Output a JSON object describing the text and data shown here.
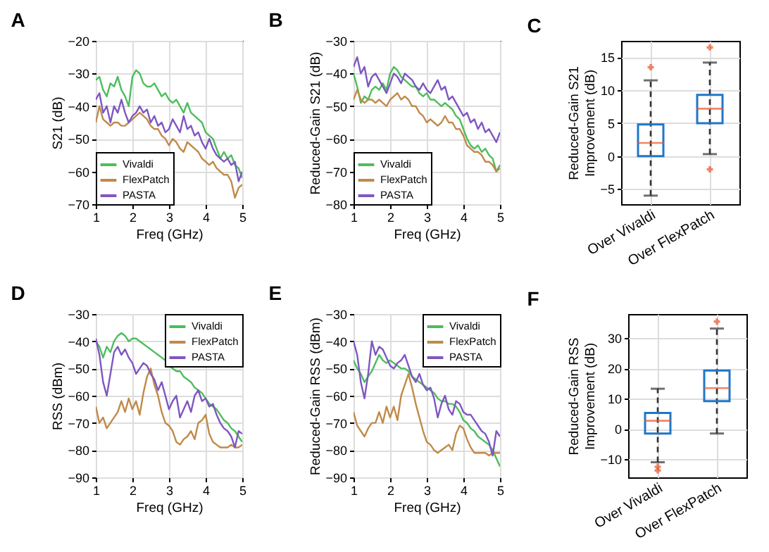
{
  "chart_data": [
    {
      "type": "line",
      "title": "A",
      "xlabel": "Freq (GHz)",
      "ylabel": "S21 (dB)",
      "xlim": [
        1,
        5
      ],
      "xticks": [
        1,
        2,
        3,
        4,
        5
      ],
      "ylim": [
        -70,
        -20
      ],
      "yticks": [
        -70,
        -60,
        -50,
        -40,
        -30,
        -20
      ],
      "grid": true,
      "legend": "bottom left",
      "x": [
        1,
        1.1,
        1.2,
        1.3,
        1.4,
        1.5,
        1.6,
        1.7,
        1.8,
        1.9,
        2,
        2.1,
        2.2,
        2.3,
        2.4,
        2.5,
        2.6,
        2.7,
        2.8,
        2.9,
        3,
        3.1,
        3.2,
        3.3,
        3.4,
        3.5,
        3.6,
        3.7,
        3.8,
        3.9,
        4,
        4.1,
        4.2,
        4.3,
        4.4,
        4.5,
        4.6,
        4.7,
        4.8,
        4.9,
        5
      ],
      "series": [
        {
          "name": "Vivaldi",
          "color": "#4dbd5c",
          "values": [
            -32,
            -31,
            -35,
            -37,
            -33,
            -34,
            -31,
            -35,
            -37,
            -40,
            -31,
            -29,
            -30,
            -33,
            -34,
            -34,
            -33,
            -35,
            -37,
            -36,
            -38,
            -39,
            -38,
            -40,
            -42,
            -39,
            -42,
            -43,
            -44,
            -45,
            -48,
            -49,
            -50,
            -53,
            -56,
            -54,
            -56,
            -55,
            -58,
            -59,
            -62
          ]
        },
        {
          "name": "FlexPatch",
          "color": "#c08a4a",
          "values": [
            -45,
            -40,
            -44,
            -45,
            -46,
            -45,
            -45,
            -46,
            -46,
            -45,
            -44,
            -43,
            -42,
            -43,
            -44,
            -46,
            -47,
            -47,
            -49,
            -50,
            -52,
            -50,
            -51,
            -53,
            -54,
            -51,
            -52,
            -53,
            -54,
            -56,
            -57,
            -58,
            -57,
            -59,
            -60,
            -61,
            -61,
            -63,
            -68,
            -65,
            -64
          ]
        },
        {
          "name": "PASTA",
          "color": "#7e57c2",
          "values": [
            -38,
            -36,
            -42,
            -40,
            -45,
            -40,
            -42,
            -38,
            -42,
            -45,
            -43,
            -42,
            -40,
            -42,
            -41,
            -45,
            -43,
            -46,
            -45,
            -48,
            -47,
            -44,
            -46,
            -48,
            -43,
            -47,
            -46,
            -49,
            -48,
            -51,
            -53,
            -50,
            -53,
            -55,
            -56,
            -57,
            -56,
            -58,
            -57,
            -63,
            -60
          ]
        }
      ]
    },
    {
      "type": "line",
      "title": "B",
      "xlabel": "Freq (GHz)",
      "ylabel": "Reduced-Gain S21 (dB)",
      "xlim": [
        1,
        5
      ],
      "xticks": [
        1,
        2,
        3,
        4,
        5
      ],
      "ylim": [
        -80,
        -30
      ],
      "yticks": [
        -80,
        -70,
        -60,
        -50,
        -40,
        -30
      ],
      "grid": true,
      "legend": "bottom left",
      "x": [
        1,
        1.1,
        1.2,
        1.3,
        1.4,
        1.5,
        1.6,
        1.7,
        1.8,
        1.9,
        2,
        2.1,
        2.2,
        2.3,
        2.4,
        2.5,
        2.6,
        2.7,
        2.8,
        2.9,
        3,
        3.1,
        3.2,
        3.3,
        3.4,
        3.5,
        3.6,
        3.7,
        3.8,
        3.9,
        4,
        4.1,
        4.2,
        4.3,
        4.4,
        4.5,
        4.6,
        4.7,
        4.8,
        4.9,
        5
      ],
      "series": [
        {
          "name": "Vivaldi",
          "color": "#4dbd5c",
          "values": [
            -40,
            -44,
            -49,
            -47,
            -48,
            -45,
            -44,
            -45,
            -43,
            -45,
            -40,
            -38,
            -39,
            -41,
            -42,
            -43,
            -44,
            -44,
            -46,
            -47,
            -46,
            -48,
            -48,
            -49,
            -50,
            -49,
            -50,
            -51,
            -53,
            -54,
            -57,
            -60,
            -62,
            -63,
            -62,
            -64,
            -63,
            -65,
            -66,
            -70,
            -68
          ]
        },
        {
          "name": "FlexPatch",
          "color": "#c08a4a",
          "values": [
            -48,
            -45,
            -48,
            -49,
            -48,
            -48,
            -49,
            -48,
            -49,
            -50,
            -48,
            -47,
            -46,
            -48,
            -47,
            -48,
            -50,
            -50,
            -52,
            -53,
            -55,
            -54,
            -55,
            -56,
            -55,
            -53,
            -55,
            -55,
            -57,
            -57,
            -59,
            -62,
            -63,
            -64,
            -64,
            -65,
            -67,
            -67,
            -68,
            -70,
            -69
          ]
        },
        {
          "name": "PASTA",
          "color": "#7e57c2",
          "values": [
            -38,
            -35,
            -40,
            -38,
            -44,
            -41,
            -40,
            -42,
            -44,
            -46,
            -43,
            -40,
            -41,
            -43,
            -40,
            -41,
            -42,
            -44,
            -45,
            -43,
            -45,
            -46,
            -44,
            -42,
            -45,
            -44,
            -48,
            -47,
            -49,
            -51,
            -53,
            -52,
            -55,
            -54,
            -57,
            -55,
            -58,
            -57,
            -59,
            -61,
            -58
          ]
        }
      ]
    },
    {
      "type": "box",
      "title": "C",
      "ylabel": "Reduced-Gain S21 Improvement (dB)",
      "categories": [
        "Over Vivaldi",
        "Over FlexPatch"
      ],
      "ylim": [
        -7.3,
        17.5
      ],
      "yticks": [
        -5,
        0,
        5,
        10,
        15
      ],
      "grid": true,
      "boxes": [
        {
          "low": -6,
          "q1": 0,
          "median": 2,
          "q3": 4.8,
          "high": 11.5,
          "outliers": [
            13.5
          ]
        },
        {
          "low": 0.3,
          "q1": 5,
          "median": 7.2,
          "q3": 9.3,
          "high": 14.2,
          "outliers": [
            16.5,
            -2
          ]
        }
      ]
    },
    {
      "type": "line",
      "title": "D",
      "xlabel": "Freq (GHz)",
      "ylabel": "RSS (dBm)",
      "xlim": [
        1,
        5
      ],
      "xticks": [
        1,
        2,
        3,
        4,
        5
      ],
      "ylim": [
        -90,
        -30
      ],
      "yticks": [
        -90,
        -80,
        -70,
        -60,
        -50,
        -40,
        -30
      ],
      "grid": true,
      "legend": "top right",
      "x": [
        1,
        1.1,
        1.2,
        1.3,
        1.4,
        1.5,
        1.6,
        1.7,
        1.8,
        1.9,
        2,
        2.1,
        2.2,
        2.3,
        2.4,
        2.5,
        2.6,
        2.7,
        2.8,
        2.9,
        3,
        3.1,
        3.2,
        3.3,
        3.4,
        3.5,
        3.6,
        3.7,
        3.8,
        3.9,
        4,
        4.1,
        4.2,
        4.3,
        4.4,
        4.5,
        4.6,
        4.7,
        4.8,
        4.9,
        5
      ],
      "series": [
        {
          "name": "Vivaldi",
          "color": "#4dbd5c",
          "values": [
            -40,
            -42,
            -46,
            -42,
            -44,
            -40,
            -38,
            -37,
            -38,
            -40,
            -39,
            -39,
            -40,
            -41,
            -42,
            -43,
            -44,
            -45,
            -46,
            -47,
            -49,
            -50,
            -51,
            -51,
            -53,
            -54,
            -55,
            -57,
            -58,
            -59,
            -61,
            -63,
            -64,
            -65,
            -67,
            -69,
            -70,
            -72,
            -73,
            -75,
            -77
          ]
        },
        {
          "name": "FlexPatch",
          "color": "#c08a4a",
          "values": [
            -64,
            -70,
            -68,
            -72,
            -70,
            -68,
            -66,
            -62,
            -66,
            -61,
            -65,
            -62,
            -67,
            -59,
            -53,
            -50,
            -56,
            -60,
            -66,
            -70,
            -71,
            -73,
            -77,
            -78,
            -76,
            -75,
            -73,
            -76,
            -70,
            -69,
            -67,
            -74,
            -77,
            -78,
            -79,
            -79,
            -79,
            -78,
            -79,
            -79,
            -78
          ]
        },
        {
          "name": "PASTA",
          "color": "#7e57c2",
          "values": [
            -39,
            -45,
            -55,
            -60,
            -52,
            -44,
            -42,
            -45,
            -43,
            -46,
            -48,
            -52,
            -50,
            -48,
            -49,
            -52,
            -54,
            -58,
            -55,
            -60,
            -65,
            -62,
            -60,
            -68,
            -65,
            -62,
            -66,
            -60,
            -58,
            -62,
            -61,
            -64,
            -63,
            -67,
            -70,
            -72,
            -73,
            -75,
            -79,
            -73,
            -74
          ]
        }
      ]
    },
    {
      "type": "line",
      "title": "E",
      "xlabel": "Freq (GHz)",
      "ylabel": "Reduced-Gain RSS (dBm)",
      "xlim": [
        1,
        5
      ],
      "xticks": [
        1,
        2,
        3,
        4,
        5
      ],
      "ylim": [
        -90,
        -30
      ],
      "yticks": [
        -90,
        -80,
        -70,
        -60,
        -50,
        -40,
        -30
      ],
      "grid": true,
      "legend": "top right",
      "x": [
        1,
        1.1,
        1.2,
        1.3,
        1.4,
        1.5,
        1.6,
        1.7,
        1.8,
        1.9,
        2,
        2.1,
        2.2,
        2.3,
        2.4,
        2.5,
        2.6,
        2.7,
        2.8,
        2.9,
        3,
        3.1,
        3.2,
        3.3,
        3.4,
        3.5,
        3.6,
        3.7,
        3.8,
        3.9,
        4,
        4.1,
        4.2,
        4.3,
        4.4,
        4.5,
        4.6,
        4.7,
        4.8,
        4.9,
        5
      ],
      "series": [
        {
          "name": "Vivaldi",
          "color": "#4dbd5c",
          "values": [
            -47,
            -50,
            -52,
            -55,
            -53,
            -51,
            -48,
            -45,
            -47,
            -48,
            -47,
            -48,
            -49,
            -50,
            -50,
            -51,
            -53,
            -54,
            -55,
            -56,
            -57,
            -58,
            -59,
            -61,
            -62,
            -62,
            -63,
            -63,
            -64,
            -66,
            -69,
            -70,
            -72,
            -73,
            -75,
            -76,
            -77,
            -78,
            -80,
            -83,
            -86
          ]
        },
        {
          "name": "FlexPatch",
          "color": "#c08a4a",
          "values": [
            -66,
            -71,
            -73,
            -75,
            -72,
            -70,
            -70,
            -66,
            -70,
            -64,
            -68,
            -64,
            -69,
            -60,
            -56,
            -52,
            -57,
            -63,
            -68,
            -73,
            -77,
            -78,
            -80,
            -81,
            -80,
            -79,
            -78,
            -80,
            -74,
            -71,
            -72,
            -76,
            -79,
            -81,
            -81,
            -81,
            -81,
            -82,
            -81,
            -81,
            -81
          ]
        },
        {
          "name": "PASTA",
          "color": "#7e57c2",
          "values": [
            -40,
            -45,
            -55,
            -61,
            -52,
            -40,
            -45,
            -42,
            -43,
            -46,
            -49,
            -50,
            -48,
            -47,
            -45,
            -49,
            -53,
            -55,
            -52,
            -56,
            -58,
            -57,
            -61,
            -68,
            -63,
            -60,
            -65,
            -67,
            -62,
            -63,
            -66,
            -67,
            -67,
            -69,
            -71,
            -73,
            -74,
            -77,
            -82,
            -73,
            -75
          ]
        }
      ]
    },
    {
      "type": "box",
      "title": "F",
      "ylabel": "Reduced-Gain RSS Improvement (dB)",
      "categories": [
        "Over Vivaldi",
        "Over FlexPatch"
      ],
      "ylim": [
        -16,
        38
      ],
      "yticks": [
        -10,
        0,
        10,
        20,
        30
      ],
      "grid": true,
      "boxes": [
        {
          "low": -11,
          "q1": -1.5,
          "median": 2.7,
          "q3": 5.3,
          "high": 13.3,
          "outliers": [
            -12.5,
            -13.7
          ]
        },
        {
          "low": -1.5,
          "q1": 9.2,
          "median": 13.5,
          "q3": 19.3,
          "high": 33.2,
          "outliers": [
            35.5
          ]
        }
      ]
    }
  ]
}
